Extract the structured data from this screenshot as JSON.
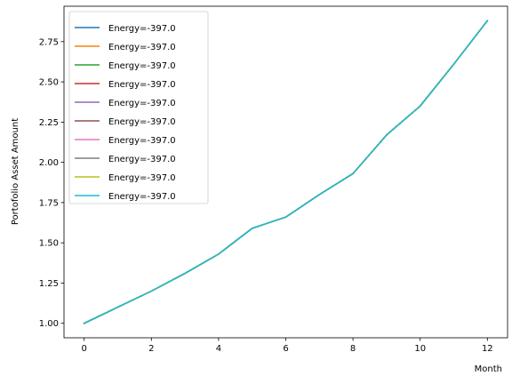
{
  "chart_data": {
    "type": "line",
    "xlabel": "Month",
    "ylabel": "Portofolio Asset Amount",
    "xlim": [
      -0.6,
      12.6
    ],
    "ylim": [
      0.91,
      2.97
    ],
    "x_ticks": [
      "0",
      "2",
      "4",
      "6",
      "8",
      "10",
      "12"
    ],
    "y_ticks": [
      "1.00",
      "1.25",
      "1.50",
      "1.75",
      "2.00",
      "2.25",
      "2.50",
      "2.75"
    ],
    "grid": false,
    "legend_position": "top-left",
    "x": [
      0,
      1,
      2,
      3,
      4,
      5,
      6,
      7,
      8,
      9,
      10,
      11,
      12
    ],
    "series": [
      {
        "name": "Energy=-397.0",
        "color": "#1f77b4",
        "values": [
          1.0,
          1.1,
          1.2,
          1.31,
          1.43,
          1.59,
          1.66,
          1.8,
          1.93,
          2.17,
          2.35,
          2.61,
          2.88
        ]
      },
      {
        "name": "Energy=-397.0",
        "color": "#ff7f0e",
        "values": [
          1.0,
          1.1,
          1.2,
          1.31,
          1.43,
          1.59,
          1.66,
          1.8,
          1.93,
          2.17,
          2.35,
          2.61,
          2.88
        ]
      },
      {
        "name": "Energy=-397.0",
        "color": "#2ca02c",
        "values": [
          1.0,
          1.1,
          1.2,
          1.31,
          1.43,
          1.59,
          1.66,
          1.8,
          1.93,
          2.17,
          2.35,
          2.61,
          2.88
        ]
      },
      {
        "name": "Energy=-397.0",
        "color": "#d62728",
        "values": [
          1.0,
          1.1,
          1.2,
          1.31,
          1.43,
          1.59,
          1.66,
          1.8,
          1.93,
          2.17,
          2.35,
          2.61,
          2.88
        ]
      },
      {
        "name": "Energy=-397.0",
        "color": "#9467bd",
        "values": [
          1.0,
          1.1,
          1.2,
          1.31,
          1.43,
          1.59,
          1.66,
          1.8,
          1.93,
          2.17,
          2.35,
          2.61,
          2.88
        ]
      },
      {
        "name": "Energy=-397.0",
        "color": "#8c564b",
        "values": [
          1.0,
          1.1,
          1.2,
          1.31,
          1.43,
          1.59,
          1.66,
          1.8,
          1.93,
          2.17,
          2.35,
          2.61,
          2.88
        ]
      },
      {
        "name": "Energy=-397.0",
        "color": "#e377c2",
        "values": [
          1.0,
          1.1,
          1.2,
          1.31,
          1.43,
          1.59,
          1.66,
          1.8,
          1.93,
          2.17,
          2.35,
          2.61,
          2.88
        ]
      },
      {
        "name": "Energy=-397.0",
        "color": "#7f7f7f",
        "values": [
          1.0,
          1.1,
          1.2,
          1.31,
          1.43,
          1.59,
          1.66,
          1.8,
          1.93,
          2.17,
          2.35,
          2.61,
          2.88
        ]
      },
      {
        "name": "Energy=-397.0",
        "color": "#bcbd22",
        "values": [
          1.0,
          1.1,
          1.2,
          1.31,
          1.43,
          1.59,
          1.66,
          1.8,
          1.93,
          2.17,
          2.35,
          2.61,
          2.88
        ]
      },
      {
        "name": "Energy=-397.0",
        "color": "#17becf",
        "values": [
          1.0,
          1.1,
          1.2,
          1.31,
          1.43,
          1.59,
          1.66,
          1.8,
          1.93,
          2.17,
          2.35,
          2.61,
          2.88
        ]
      }
    ]
  }
}
